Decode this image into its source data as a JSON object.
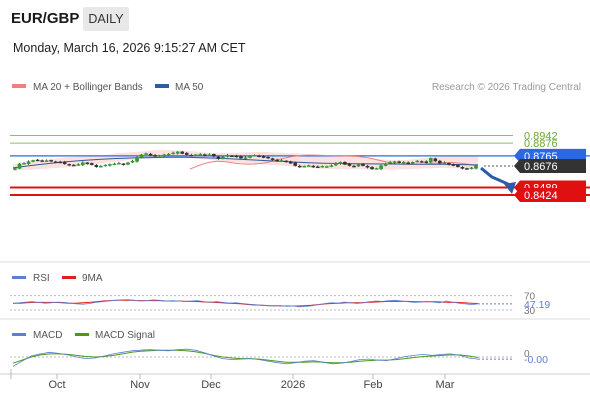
{
  "header": {
    "pair": "EUR/GBP",
    "timeframe": "DAILY",
    "datetime": "Monday, March 16, 2026 9:15:27 AM CET"
  },
  "legend": {
    "ma20_label": "MA 20 + Bollinger Bands",
    "ma50_label": "MA 50",
    "ma20_color": "#f08080",
    "ma50_color": "#2e5c9e",
    "credit": "Research © 2026 Trading Central"
  },
  "rsi_panel": {
    "rsi_label": "RSI",
    "ma_label": "9MA",
    "rsi_color": "#5b7fd4",
    "ma_color": "#e02020"
  },
  "macd_panel": {
    "macd_label": "MACD",
    "signal_label": "MACD Signal",
    "macd_color": "#5b7fd4",
    "signal_color": "#4a9a1a"
  },
  "chart_data": [
    {
      "type": "candlestick",
      "x_ticks": [
        "Oct",
        "Nov",
        "Dec",
        "2026",
        "Feb",
        "Mar"
      ],
      "levels": [
        {
          "value": 0.8942,
          "label": "0.8942",
          "kind": "resistance",
          "color": "#8cc060"
        },
        {
          "value": 0.8876,
          "label": "0.8876",
          "kind": "resistance",
          "color": "#8cc060"
        },
        {
          "value": 0.8765,
          "label": "0.8765",
          "kind": "pivot",
          "color": "#2a6ae0"
        },
        {
          "value": 0.8676,
          "label": "0.8676",
          "kind": "last",
          "color": "#333333"
        },
        {
          "value": 0.8489,
          "label": "0.8489",
          "kind": "support",
          "color": "#e01010"
        },
        {
          "value": 0.8424,
          "label": "0.8424",
          "kind": "support",
          "color": "#e01010"
        }
      ],
      "closes": [
        0.8655,
        0.8695,
        0.87,
        0.8715,
        0.8725,
        0.8728,
        0.872,
        0.8722,
        0.8718,
        0.8712,
        0.8705,
        0.8695,
        0.8685,
        0.8682,
        0.869,
        0.8705,
        0.8695,
        0.8688,
        0.867,
        0.8675,
        0.8685,
        0.869,
        0.8695,
        0.87,
        0.869,
        0.8705,
        0.872,
        0.875,
        0.8775,
        0.8785,
        0.877,
        0.876,
        0.8768,
        0.8775,
        0.878,
        0.879,
        0.88,
        0.8785,
        0.8775,
        0.877,
        0.8775,
        0.878,
        0.877,
        0.8775,
        0.876,
        0.874,
        0.8755,
        0.877,
        0.8765,
        0.8755,
        0.8745,
        0.875,
        0.8765,
        0.877,
        0.876,
        0.875,
        0.8745,
        0.873,
        0.872,
        0.8725,
        0.8715,
        0.87,
        0.868,
        0.867,
        0.8675,
        0.868,
        0.867,
        0.8665,
        0.8675,
        0.8672,
        0.868,
        0.87,
        0.871,
        0.869,
        0.868,
        0.8675,
        0.869,
        0.868,
        0.8665,
        0.865,
        0.8655,
        0.868,
        0.8695,
        0.871,
        0.8715,
        0.8705,
        0.871,
        0.87,
        0.871,
        0.872,
        0.8715,
        0.8705,
        0.8745,
        0.872,
        0.87,
        0.8705,
        0.869,
        0.868,
        0.867,
        0.8655,
        0.865,
        0.866,
        0.8676
      ],
      "ma20": [
        0.865,
        0.8666,
        0.8682,
        0.8696,
        0.8707,
        0.8714,
        0.8717,
        0.8716,
        0.8712,
        0.8706,
        0.87,
        0.8696,
        0.8694,
        0.8693,
        0.8694,
        0.8697,
        0.8702,
        0.8709,
        0.8718,
        0.8728,
        0.8738,
        0.8748,
        0.8756,
        0.8762,
        0.8767,
        0.877,
        0.8771,
        0.8771,
        0.877,
        0.8769,
        0.8768,
        0.8767,
        0.8766,
        0.8765,
        0.8764,
        0.8763,
        0.8761,
        0.8758,
        0.8753,
        0.8747,
        0.8739,
        0.873,
        0.8721,
        0.8711,
        0.8703,
        0.8697,
        0.8693,
        0.8691,
        0.869,
        0.869,
        0.8691,
        0.8693,
        0.8696,
        0.8699,
        0.8702,
        0.8705,
        0.8706,
        0.8707,
        0.8705,
        0.8702,
        0.8696,
        0.869,
        0.8683,
        0.8677
      ],
      "ma50": [
        0.866,
        0.868,
        0.8697,
        0.8712,
        0.8724,
        0.8734,
        0.8742,
        0.8747,
        0.875,
        0.8752,
        0.8752,
        0.8749,
        0.8744,
        0.8737,
        0.8729,
        0.8721,
        0.8713,
        0.8706,
        0.8701,
        0.8698,
        0.8696,
        0.8695,
        0.8694,
        0.8693,
        0.8692,
        0.8691,
        0.8689,
        0.8686
      ],
      "bb_upper": [
        0.869,
        0.871,
        0.8735,
        0.8752,
        0.876,
        0.8768,
        0.879,
        0.88,
        0.8815,
        0.8815,
        0.8805,
        0.879,
        0.879,
        0.8795,
        0.88,
        0.879,
        0.8785,
        0.8775,
        0.877,
        0.876,
        0.874,
        0.873,
        0.873,
        0.8745,
        0.876,
        0.8765,
        0.8768
      ],
      "bb_lower": [
        0.864,
        0.8645,
        0.8655,
        0.8665,
        0.868,
        0.87,
        0.872,
        0.8735,
        0.8745,
        0.875,
        0.8745,
        0.873,
        0.8715,
        0.87,
        0.869,
        0.868,
        0.8665,
        0.8655,
        0.865,
        0.865,
        0.8648,
        0.8645,
        0.8648,
        0.8655,
        0.866,
        0.8655,
        0.865
      ],
      "forecast": {
        "from": 0.8676,
        "to": 0.8424,
        "color": "#2a5caa"
      }
    },
    {
      "type": "line",
      "name": "RSI",
      "hlines": [
        70,
        30
      ],
      "tick_labels": [
        "70",
        "30"
      ],
      "current_label": "47.19",
      "rsi": [
        48,
        50,
        52,
        53,
        51,
        49,
        50,
        52,
        51,
        49,
        47,
        46,
        48,
        51,
        53,
        55,
        57,
        58,
        59,
        57,
        55,
        56,
        58,
        57,
        55,
        56,
        55,
        54,
        55,
        56,
        53,
        52,
        53,
        51,
        49,
        50,
        48,
        46,
        45,
        43,
        42,
        41,
        42,
        40,
        41,
        39,
        40,
        42,
        45,
        48,
        50,
        49,
        52,
        50,
        48,
        50,
        53,
        55,
        54,
        56,
        57,
        55,
        53,
        51,
        52,
        54,
        52,
        50,
        55,
        52,
        49,
        47,
        45,
        47
      ],
      "rsi_ma": [
        49,
        49,
        50,
        51,
        51,
        51,
        51,
        50,
        49,
        49,
        50,
        51,
        53,
        55,
        56,
        57,
        57,
        57,
        56,
        56,
        56,
        56,
        55,
        55,
        55,
        54,
        54,
        53,
        52,
        51,
        50,
        49,
        48,
        47,
        45,
        44,
        43,
        42,
        42,
        41,
        41,
        41,
        42,
        43,
        45,
        47,
        48,
        49,
        50,
        50,
        50,
        51,
        52,
        53,
        54,
        54,
        54,
        54,
        53,
        53,
        53,
        53,
        52,
        51,
        51,
        50,
        49,
        48
      ]
    },
    {
      "type": "line",
      "name": "MACD",
      "zero_label": "0",
      "current_label": "-0.00",
      "macd": [
        -0.0018,
        -0.0008,
        0.0002,
        0.0006,
        0.0009,
        0.0007,
        0.0004,
        0.0,
        -0.0003,
        -0.0002,
        0.0002,
        0.0006,
        0.0009,
        0.0012,
        0.0013,
        0.0014,
        0.0013,
        0.0012,
        0.0014,
        0.0015,
        0.0013,
        0.0008,
        0.0002,
        -0.0003,
        -0.0005,
        -0.0004,
        -0.0003,
        -0.0005,
        -0.0008,
        -0.0011,
        -0.0013,
        -0.0011,
        -0.0008,
        -0.0007,
        -0.001,
        -0.0013,
        -0.0012,
        -0.0009,
        -0.0005,
        -0.0004,
        -0.0006,
        -0.0007,
        -0.0003,
        0.0001,
        0.0003,
        0.0005,
        0.0003,
        0.0005,
        0.0006,
        0.0003,
        -0.0002,
        -0.0004
      ],
      "signal": [
        -0.0012,
        -0.0006,
        0.0,
        0.0004,
        0.0006,
        0.0006,
        0.0005,
        0.0003,
        0.0001,
        0.0,
        0.0001,
        0.0003,
        0.0006,
        0.0009,
        0.0011,
        0.0012,
        0.0013,
        0.0013,
        0.0013,
        0.0012,
        0.001,
        0.0007,
        0.0003,
        0.0,
        -0.0002,
        -0.0003,
        -0.0003,
        -0.0004,
        -0.0006,
        -0.0008,
        -0.001,
        -0.001,
        -0.001,
        -0.0009,
        -0.001,
        -0.0011,
        -0.0011,
        -0.001,
        -0.0008,
        -0.0007,
        -0.0006,
        -0.0006,
        -0.0005,
        -0.0003,
        -0.0001,
        0.0001,
        0.0002,
        0.0003,
        0.0004,
        0.0004,
        0.0002,
        -0.0001
      ]
    }
  ]
}
